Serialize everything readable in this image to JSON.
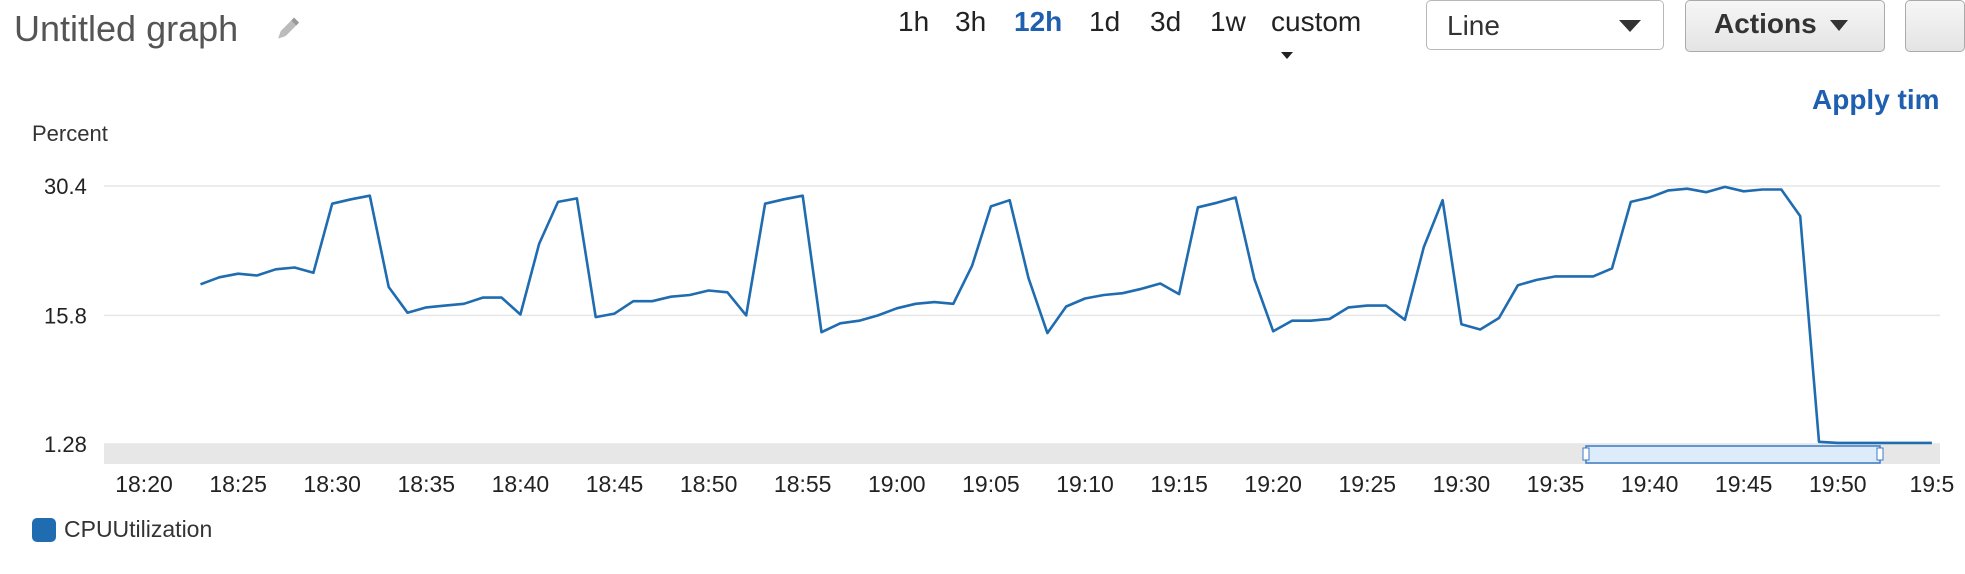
{
  "header": {
    "title": "Untitled graph",
    "edit_icon": "pencil-icon",
    "time_ranges": [
      {
        "label": "1h",
        "active": false
      },
      {
        "label": "3h",
        "active": false
      },
      {
        "label": "12h",
        "active": true
      },
      {
        "label": "1d",
        "active": false
      },
      {
        "label": "3d",
        "active": false
      },
      {
        "label": "1w",
        "active": false
      },
      {
        "label": "custom",
        "active": false
      }
    ],
    "chart_type_select": {
      "value": "Line"
    },
    "actions_button": {
      "label": "Actions"
    },
    "apply_time_link": "Apply tim"
  },
  "colors": {
    "accent": "#1f5fb0",
    "series": "#1f6cb0",
    "grid": "#e6e6e6",
    "brush_fill": "#dcecfb"
  },
  "chart_data": {
    "type": "line",
    "ylabel": "Percent",
    "yticks": [
      "30.4",
      "15.8",
      "1.28"
    ],
    "ylim": [
      1.28,
      30.4
    ],
    "xticks": [
      "18:20",
      "18:25",
      "18:30",
      "18:35",
      "18:40",
      "18:45",
      "18:50",
      "18:55",
      "19:00",
      "19:05",
      "19:10",
      "19:15",
      "19:20",
      "19:25",
      "19:30",
      "19:35",
      "19:40",
      "19:45",
      "19:50",
      "19:5"
    ],
    "grid": true,
    "legend_position": "bottom-left",
    "series": [
      {
        "name": "CPUUtilization",
        "color": "#1f6cb0",
        "x": [
          "18:23",
          "18:24",
          "18:25",
          "18:26",
          "18:27",
          "18:28",
          "18:29",
          "18:30",
          "18:31",
          "18:32",
          "18:33",
          "18:34",
          "18:35",
          "18:36",
          "18:37",
          "18:38",
          "18:39",
          "18:40",
          "18:41",
          "18:42",
          "18:43",
          "18:44",
          "18:45",
          "18:46",
          "18:47",
          "18:48",
          "18:49",
          "18:50",
          "18:51",
          "18:52",
          "18:53",
          "18:54",
          "18:55",
          "18:56",
          "18:57",
          "18:58",
          "18:59",
          "19:00",
          "19:01",
          "19:02",
          "19:03",
          "19:04",
          "19:05",
          "19:06",
          "19:07",
          "19:08",
          "19:09",
          "19:10",
          "19:11",
          "19:12",
          "19:13",
          "19:14",
          "19:15",
          "19:16",
          "19:17",
          "19:18",
          "19:19",
          "19:20",
          "19:21",
          "19:22",
          "19:23",
          "19:24",
          "19:25",
          "19:26",
          "19:27",
          "19:28",
          "19:29",
          "19:30",
          "19:31",
          "19:32",
          "19:33",
          "19:34",
          "19:35",
          "19:36",
          "19:37",
          "19:38",
          "19:39",
          "19:40",
          "19:41",
          "19:42",
          "19:43",
          "19:44",
          "19:45",
          "19:46",
          "19:47",
          "19:48",
          "19:49",
          "19:50",
          "19:51",
          "19:52",
          "19:53",
          "19:54",
          "19:55"
        ],
        "values": [
          19.3,
          20.1,
          20.5,
          20.3,
          21.0,
          21.2,
          20.6,
          28.4,
          28.9,
          29.3,
          19.0,
          16.1,
          16.7,
          16.9,
          17.1,
          17.8,
          17.8,
          15.9,
          23.9,
          28.6,
          29.0,
          15.6,
          16.0,
          17.4,
          17.4,
          17.9,
          18.1,
          18.6,
          18.4,
          15.8,
          28.4,
          28.9,
          29.3,
          13.9,
          14.9,
          15.2,
          15.8,
          16.6,
          17.1,
          17.3,
          17.1,
          21.4,
          28.1,
          28.8,
          20.0,
          13.8,
          16.8,
          17.7,
          18.1,
          18.3,
          18.8,
          19.4,
          18.2,
          28.0,
          28.5,
          29.1,
          19.9,
          14.0,
          15.2,
          15.2,
          15.4,
          16.7,
          16.9,
          16.9,
          15.3,
          23.5,
          28.8,
          14.8,
          14.2,
          15.5,
          19.2,
          19.8,
          20.2,
          20.2,
          20.2,
          21.1,
          28.6,
          29.1,
          29.9,
          30.1,
          29.7,
          30.3,
          29.8,
          30.0,
          30.0,
          27.0,
          1.53,
          1.4,
          1.4,
          1.4,
          1.4,
          1.4,
          1.4
        ]
      }
    ]
  }
}
